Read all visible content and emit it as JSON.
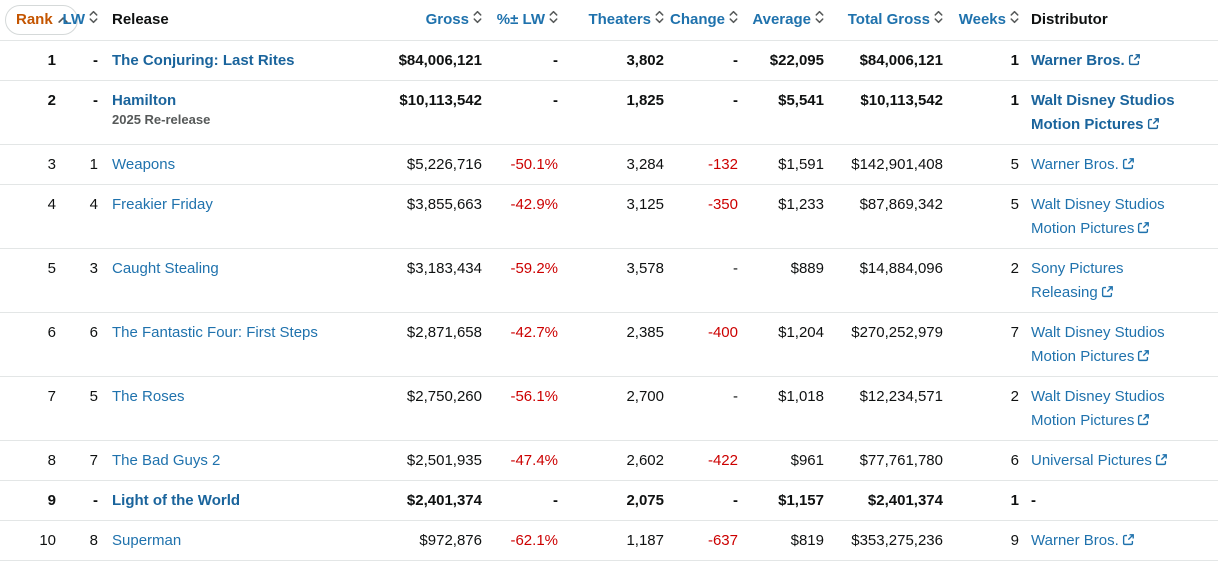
{
  "table": {
    "columns": {
      "rank": {
        "label": "Rank",
        "sorted": "ascending"
      },
      "lw": {
        "label": "LW",
        "sortable": true
      },
      "release": {
        "label": "Release",
        "sortable": false
      },
      "gross": {
        "label": "Gross",
        "sortable": true
      },
      "pct_lw": {
        "label": "%± LW",
        "sortable": true
      },
      "theaters": {
        "label": "Theaters",
        "sortable": true
      },
      "change": {
        "label": "Change",
        "sortable": true
      },
      "average": {
        "label": "Average",
        "sortable": true
      },
      "total_gross": {
        "label": "Total Gross",
        "sortable": true
      },
      "weeks": {
        "label": "Weeks",
        "sortable": true
      },
      "distributor": {
        "label": "Distributor",
        "sortable": false
      }
    },
    "rows": [
      {
        "rank": "1",
        "lw": "-",
        "release": "The Conjuring: Last Rites",
        "release_sub": "",
        "gross": "$84,006,121",
        "pct_lw": "-",
        "theaters": "3,802",
        "change": "-",
        "average": "$22,095",
        "total_gross": "$84,006,121",
        "weeks": "1",
        "distributor_lines": [
          "Warner Bros."
        ],
        "distributor_link": true,
        "is_new": true
      },
      {
        "rank": "2",
        "lw": "-",
        "release": "Hamilton",
        "release_sub": "2025 Re-release",
        "gross": "$10,113,542",
        "pct_lw": "-",
        "theaters": "1,825",
        "change": "-",
        "average": "$5,541",
        "total_gross": "$10,113,542",
        "weeks": "1",
        "distributor_lines": [
          "Walt Disney Studios",
          "Motion Pictures"
        ],
        "distributor_link": true,
        "is_new": true
      },
      {
        "rank": "3",
        "lw": "1",
        "release": "Weapons",
        "release_sub": "",
        "gross": "$5,226,716",
        "pct_lw": "-50.1%",
        "theaters": "3,284",
        "change": "-132",
        "average": "$1,591",
        "total_gross": "$142,901,408",
        "weeks": "5",
        "distributor_lines": [
          "Warner Bros."
        ],
        "distributor_link": true,
        "is_new": false
      },
      {
        "rank": "4",
        "lw": "4",
        "release": "Freakier Friday",
        "release_sub": "",
        "gross": "$3,855,663",
        "pct_lw": "-42.9%",
        "theaters": "3,125",
        "change": "-350",
        "average": "$1,233",
        "total_gross": "$87,869,342",
        "weeks": "5",
        "distributor_lines": [
          "Walt Disney Studios",
          "Motion Pictures"
        ],
        "distributor_link": true,
        "is_new": false
      },
      {
        "rank": "5",
        "lw": "3",
        "release": "Caught Stealing",
        "release_sub": "",
        "gross": "$3,183,434",
        "pct_lw": "-59.2%",
        "theaters": "3,578",
        "change": "-",
        "average": "$889",
        "total_gross": "$14,884,096",
        "weeks": "2",
        "distributor_lines": [
          "Sony Pictures",
          "Releasing"
        ],
        "distributor_link": true,
        "is_new": false
      },
      {
        "rank": "6",
        "lw": "6",
        "release": "The Fantastic Four: First Steps",
        "release_sub": "",
        "gross": "$2,871,658",
        "pct_lw": "-42.7%",
        "theaters": "2,385",
        "change": "-400",
        "average": "$1,204",
        "total_gross": "$270,252,979",
        "weeks": "7",
        "distributor_lines": [
          "Walt Disney Studios",
          "Motion Pictures"
        ],
        "distributor_link": true,
        "is_new": false
      },
      {
        "rank": "7",
        "lw": "5",
        "release": "The Roses",
        "release_sub": "",
        "gross": "$2,750,260",
        "pct_lw": "-56.1%",
        "theaters": "2,700",
        "change": "-",
        "average": "$1,018",
        "total_gross": "$12,234,571",
        "weeks": "2",
        "distributor_lines": [
          "Walt Disney Studios",
          "Motion Pictures"
        ],
        "distributor_link": true,
        "is_new": false
      },
      {
        "rank": "8",
        "lw": "7",
        "release": "The Bad Guys 2",
        "release_sub": "",
        "gross": "$2,501,935",
        "pct_lw": "-47.4%",
        "theaters": "2,602",
        "change": "-422",
        "average": "$961",
        "total_gross": "$77,761,780",
        "weeks": "6",
        "distributor_lines": [
          "Universal Pictures"
        ],
        "distributor_link": true,
        "is_new": false
      },
      {
        "rank": "9",
        "lw": "-",
        "release": "Light of the World",
        "release_sub": "",
        "gross": "$2,401,374",
        "pct_lw": "-",
        "theaters": "2,075",
        "change": "-",
        "average": "$1,157",
        "total_gross": "$2,401,374",
        "weeks": "1",
        "distributor_lines": [
          "-"
        ],
        "distributor_link": false,
        "is_new": true
      },
      {
        "rank": "10",
        "lw": "8",
        "release": "Superman",
        "release_sub": "",
        "gross": "$972,876",
        "pct_lw": "-62.1%",
        "theaters": "1,187",
        "change": "-637",
        "average": "$819",
        "total_gross": "$353,275,236",
        "weeks": "9",
        "distributor_lines": [
          "Warner Bros."
        ],
        "distributor_link": true,
        "is_new": false
      }
    ],
    "colors": {
      "link_blue": "#1f72ad",
      "sorted_orange": "#c45500",
      "negative_red": "#cc0000",
      "text": "#0f1111",
      "divider": "#e3e6e6",
      "sub_gray": "#565959"
    }
  }
}
